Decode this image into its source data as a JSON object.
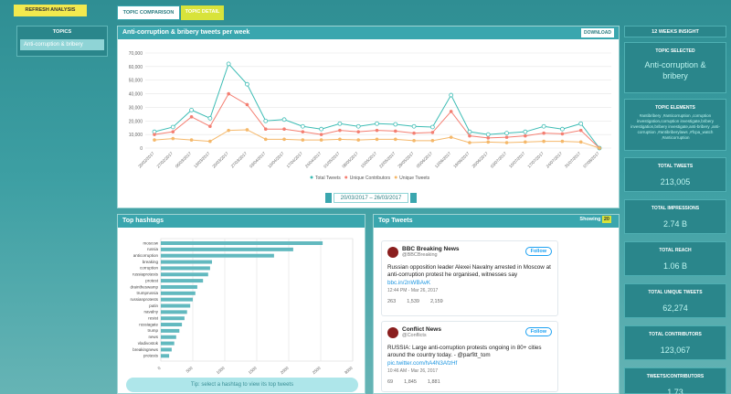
{
  "sidebar": {
    "refresh_button": "REFRESH ANALYSIS",
    "topics_title": "TOPICS",
    "topics": [
      "Anti-corruption & bribery"
    ]
  },
  "tabs": [
    "TOPIC COMPARISON",
    "TOPIC DETAIL"
  ],
  "chart_data": [
    {
      "type": "line",
      "title": "Anti-corruption & bribery tweets per week",
      "download": "DOWNLOAD",
      "categories": [
        "20/02/2017",
        "27/02/2017",
        "06/03/2017",
        "13/03/2017",
        "20/03/2017",
        "27/03/2017",
        "03/04/2017",
        "10/04/2017",
        "17/04/2017",
        "24/04/2017",
        "01/05/2017",
        "08/05/2017",
        "15/05/2017",
        "22/05/2017",
        "29/05/2017",
        "05/06/2017",
        "12/06/2017",
        "19/06/2017",
        "26/06/2017",
        "03/07/2017",
        "10/07/2017",
        "17/07/2017",
        "24/07/2017",
        "31/07/2017",
        "07/08/2017"
      ],
      "series": [
        {
          "name": "Total Tweets",
          "color": "#3cbcb4",
          "values": [
            12000,
            15500,
            28000,
            22000,
            62000,
            47000,
            20000,
            21000,
            16000,
            14000,
            18000,
            16000,
            18000,
            17500,
            16000,
            15500,
            39000,
            12000,
            10000,
            11000,
            12000,
            16000,
            14000,
            18000,
            0
          ]
        },
        {
          "name": "Unique Contributors",
          "color": "#f47f72",
          "values": [
            10000,
            12000,
            23000,
            16000,
            40000,
            32000,
            14000,
            14000,
            12000,
            10000,
            13000,
            12000,
            13000,
            12500,
            11000,
            11500,
            27000,
            9000,
            7500,
            8000,
            9000,
            11000,
            10500,
            13000,
            0
          ]
        },
        {
          "name": "Unique Tweets",
          "color": "#f5b86a",
          "values": [
            6000,
            7000,
            6000,
            5000,
            13000,
            13500,
            6500,
            6500,
            6000,
            6000,
            6500,
            6000,
            6500,
            6500,
            5500,
            5500,
            8000,
            4000,
            4500,
            4000,
            4500,
            5000,
            5000,
            4500,
            0
          ]
        }
      ],
      "ylim": [
        0,
        70000
      ],
      "yticks": [
        0,
        {
          "value": 10000,
          "label": "10,000"
        },
        {
          "value": 20000,
          "label": "20,000"
        },
        {
          "value": 30000,
          "label": "30,000"
        },
        {
          "value": 40000,
          "label": "40,000"
        },
        {
          "value": 50000,
          "label": "50,000"
        },
        {
          "value": 60000,
          "label": "60,000"
        },
        {
          "value": 70000,
          "label": "70,000"
        }
      ],
      "grid": true,
      "date_range": "20/03/2017 – 26/03/2017"
    },
    {
      "type": "bar",
      "orientation": "horizontal",
      "title": "Top hashtags",
      "categories": [
        "moscow",
        "russia",
        "anticorruption",
        "breaking",
        "corruption",
        "russiaprotests",
        "protest",
        "draintheswamp",
        "trumprussia",
        "russianprotests",
        "putin",
        "navalny",
        "resist",
        "russiagate",
        "trump",
        "news",
        "vladivostok",
        "breakingnews",
        "protests"
      ],
      "values": [
        2530,
        2070,
        1770,
        800,
        770,
        740,
        660,
        570,
        540,
        500,
        460,
        410,
        370,
        330,
        290,
        240,
        210,
        170,
        130
      ],
      "color": "#62b9bf",
      "xlim": [
        0,
        3000
      ],
      "xticks": [
        0,
        500,
        1000,
        1500,
        2000,
        2500,
        3000
      ],
      "grid": true,
      "tip": "Tip: select a hashtag to view its top tweets"
    }
  ],
  "top_tweets": {
    "title": "Top Tweets",
    "showing_label": "Showing",
    "showing_count": "20",
    "tweets": [
      {
        "name": "BBC Breaking News",
        "handle": "@BBCBreaking",
        "follow": "Follow",
        "text": "Russian opposition leader Alexei Navalny arrested in Moscow at anti-corruption protest he organised, witnesses say",
        "link": "bbc.in/2nWBAvK",
        "time": "12:44 PM - Mar 26, 2017",
        "replies": "263",
        "retweets": "1,539",
        "likes": "2,159"
      },
      {
        "name": "Conflict News",
        "handle": "@Conflicts",
        "follow": "Follow",
        "text": "RUSSIA: Large anti-corruption protests ongoing in 80+ cities around the country today. - @parfitt_tom",
        "link": "pic.twitter.com/hA4N3AfzHf",
        "time": "10:46 AM - Mar 26, 2017",
        "replies": "69",
        "retweets": "1,845",
        "likes": "1,881"
      }
    ]
  },
  "insight": {
    "title": "12 WEEKS INSIGHT",
    "topic_selected_label": "TOPIC SELECTED",
    "topic_selected": "Anti-corruption & bribery",
    "topic_elements_label": "TOPIC ELEMENTS",
    "topic_elements": "#antibribery ,#anticorruption ,corruption investigation,corruption investigate,bribery investigation,bribery investigate,anti-bribery ,anti-corruption ,#antibriberylaws ,#fcpa_watch ,#anticorruption",
    "stats": [
      {
        "label": "TOTAL TWEETS",
        "value": "213,005"
      },
      {
        "label": "TOTAL IMPRESSIONS",
        "value": "2.74 B"
      },
      {
        "label": "TOTAL REACH",
        "value": "1.06 B"
      },
      {
        "label": "TOTAL UNIQUE TWEETS",
        "value": "62,274"
      },
      {
        "label": "TOTAL CONTRIBUTORS",
        "value": "123,067"
      },
      {
        "label": "TWEETS/CONTRIBUTORS",
        "value": "1.73"
      }
    ]
  }
}
